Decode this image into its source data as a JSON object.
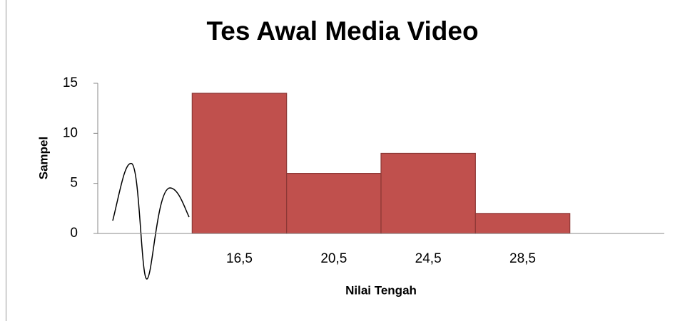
{
  "chart_data": {
    "type": "bar",
    "title": "Tes Awal Media Video",
    "x_label": "Nilai Tengah",
    "y_label": "Sampel",
    "categories": [
      null,
      "16,5",
      "20,5",
      "24,5",
      "28,5",
      null
    ],
    "values": [
      null,
      14,
      6,
      8,
      2,
      null
    ],
    "color": "#c0504d",
    "ylim": [
      0,
      15
    ],
    "yticks": [
      0,
      5,
      10,
      15
    ],
    "grid": false
  }
}
